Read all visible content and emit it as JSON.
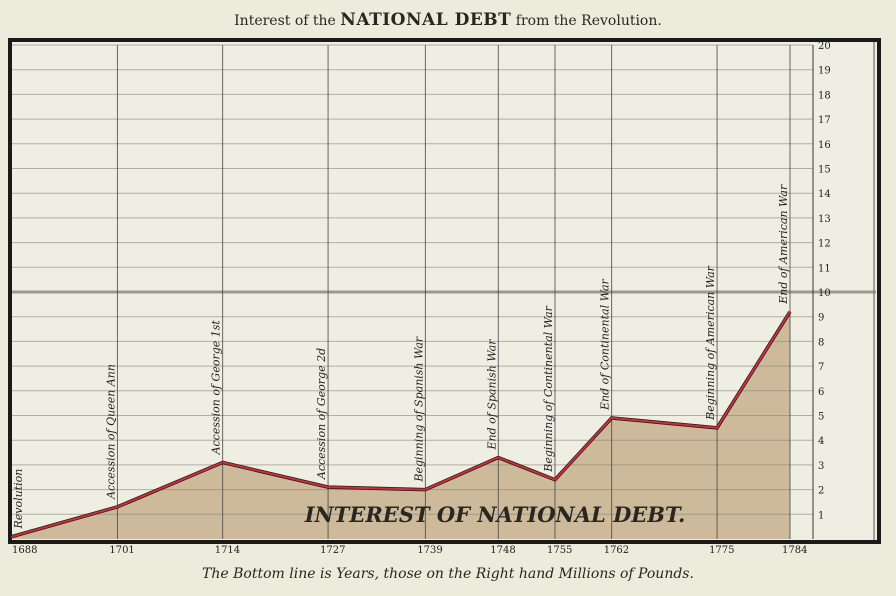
{
  "chart_data": {
    "type": "area",
    "title_pre": "Interest of the",
    "title_main": "NATIONAL DEBT",
    "title_post": "from the Revolution.",
    "series_label": "INTEREST OF NATIONAL DEBT.",
    "xlabel_note": "The Bottom line is Years, those on the Right hand Millions of Pounds.",
    "x": [
      1688,
      1701,
      1714,
      1727,
      1739,
      1748,
      1755,
      1762,
      1775,
      1784
    ],
    "x_tick_labels": [
      "1688",
      "1701",
      "1714",
      "1727",
      "1739",
      "1748",
      "1755",
      "1762",
      "1775",
      "1784"
    ],
    "values": [
      0.1,
      1.3,
      3.1,
      2.1,
      2.0,
      3.3,
      2.4,
      4.9,
      4.5,
      9.2
    ],
    "event_labels": [
      "Revolution",
      "Accession of Queen Ann",
      "Accession of George 1st",
      "Accession of George 2d",
      "Beginning of Spanish War",
      "End of Spanish War",
      "Beginning of Continental War",
      "End of Continental War",
      "Beginning of American War",
      "End of American War"
    ],
    "y_axis_side": "right",
    "ylim": [
      0,
      20
    ],
    "y_ticks": [
      1,
      2,
      3,
      4,
      5,
      6,
      7,
      8,
      9,
      10,
      11,
      12,
      13,
      14,
      15,
      16,
      17,
      18,
      19,
      20
    ],
    "xlim": [
      1688,
      1784
    ],
    "grid": true,
    "colors": {
      "line": "#c8303a",
      "fill": "#c9b493",
      "background": "#ecebdc",
      "grid": "#8a857a"
    }
  }
}
